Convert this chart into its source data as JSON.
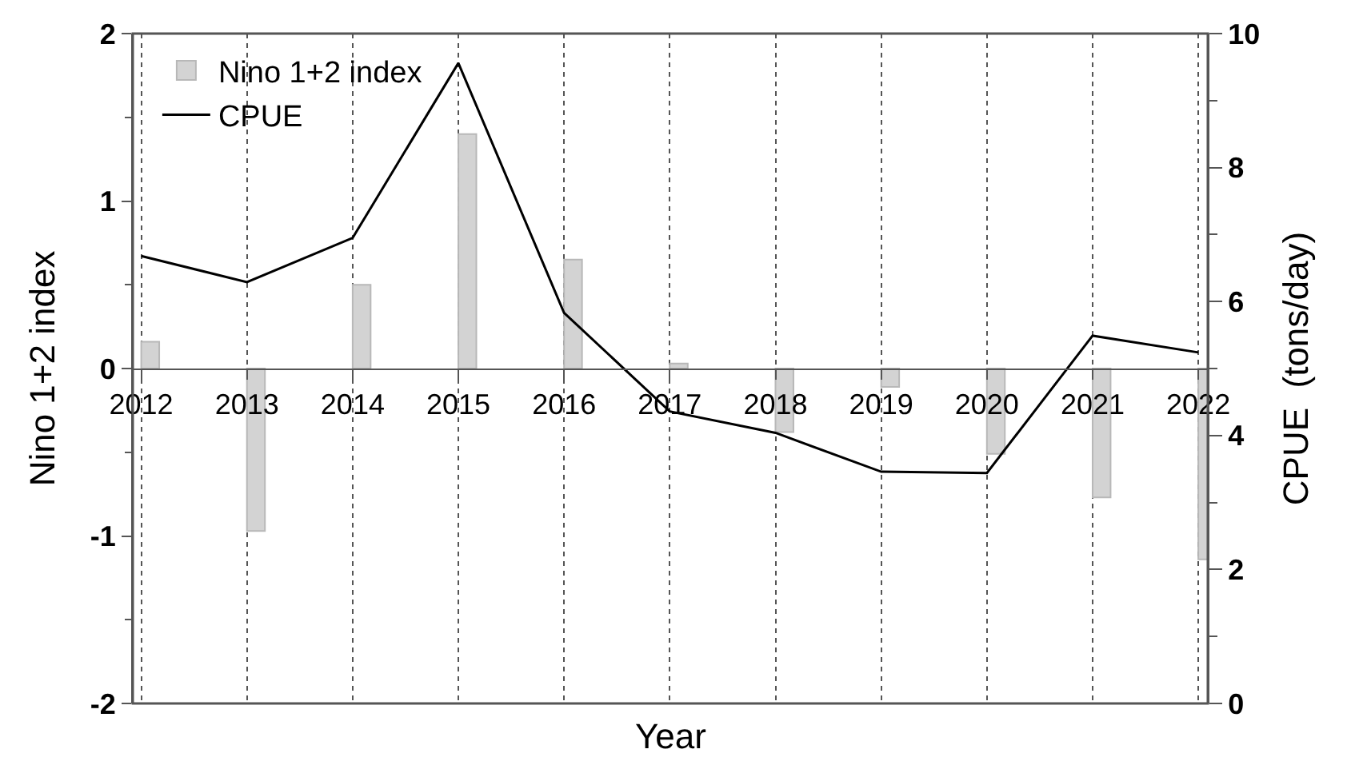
{
  "chart_data": {
    "type": "bar",
    "xlabel": "Year",
    "ylabel": "Nino 1+2 index",
    "y2label": "CPUE  (tons/day)",
    "x": [
      2012,
      2013,
      2014,
      2015,
      2016,
      2017,
      2018,
      2019,
      2020,
      2021,
      2022
    ],
    "series": [
      {
        "name": "Nino 1+2 index",
        "color": "#d3d3d3",
        "values": [
          0.16,
          -0.97,
          0.5,
          1.4,
          0.65,
          0.03,
          -0.38,
          -0.11,
          -0.51,
          -0.77,
          -1.14
        ]
      },
      {
        "name": "CPUE",
        "type": "line",
        "axis": "y2",
        "color": "#000000",
        "values": [
          6.68,
          6.29,
          6.95,
          9.56,
          5.83,
          4.36,
          4.04,
          3.46,
          3.44,
          5.49,
          5.24
        ]
      }
    ],
    "xlim": [
      2011.92,
      2022.09
    ],
    "xticks": [
      2012,
      2013,
      2014,
      2015,
      2016,
      2017,
      2018,
      2019,
      2020,
      2021,
      2022
    ],
    "ylim": [
      -2,
      2
    ],
    "yticks": [
      -2,
      -1,
      0,
      1,
      2
    ],
    "y2lim": [
      0,
      10
    ],
    "y2ticks": [
      0,
      2,
      4,
      6,
      8,
      10
    ],
    "grid": "x",
    "legend": "top left",
    "marker": "none",
    "line_style": "solid"
  }
}
